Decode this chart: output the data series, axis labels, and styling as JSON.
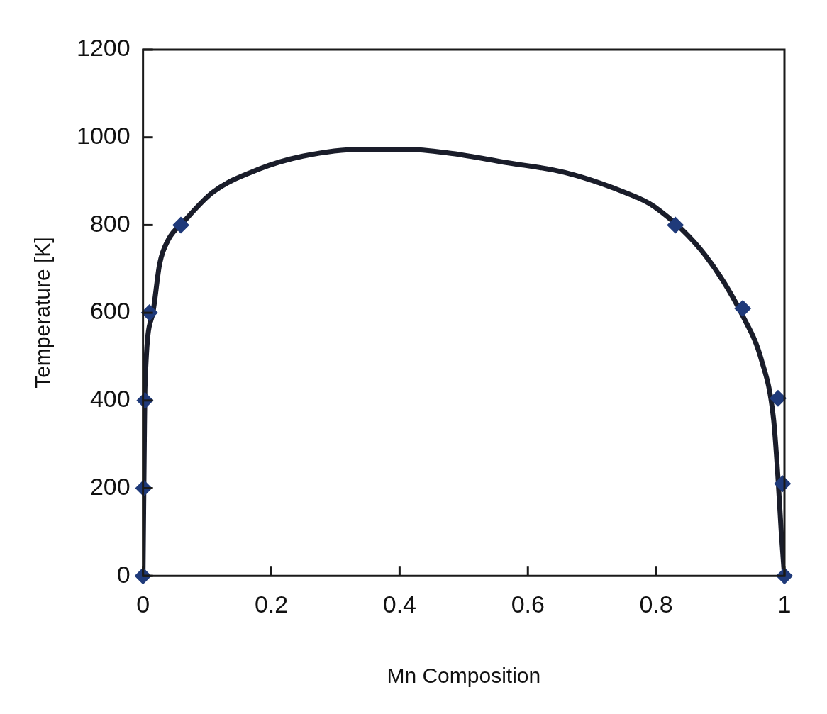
{
  "chart_data": {
    "type": "line",
    "xlabel": "Mn Composition",
    "ylabel": "Temperature [K]",
    "xlim": [
      0,
      1
    ],
    "xticks": [
      0,
      0.2,
      0.4,
      0.6,
      0.8,
      1
    ],
    "ylim": [
      0,
      1200
    ],
    "yticks": [
      0,
      200,
      400,
      600,
      800,
      1000,
      1200
    ],
    "grid": false,
    "legend": false,
    "series": [
      {
        "color": "#1a1d2a",
        "marker": "none",
        "x": [
          0,
          0.002,
          0.003,
          0.015,
          0.026,
          0.04,
          0.063,
          0.109,
          0.18,
          0.249,
          0.342,
          0.412,
          0.482,
          0.564,
          0.657,
          0.75,
          0.797,
          0.876,
          0.936,
          0.964,
          0.983,
          0.99,
          0.995,
          1
        ],
        "values": [
          0,
          300,
          427,
          597,
          712,
          768,
          807,
          875,
          927,
          957,
          973,
          973,
          963,
          943,
          920,
          875,
          842,
          732,
          590,
          493,
          358,
          222,
          100,
          0
        ]
      },
      {
        "type": "scatter",
        "color": "#1f3a7a",
        "marker": "diamond",
        "x": [
          0,
          0.001,
          0.003,
          0.01,
          0.059,
          0.83,
          0.935,
          0.99,
          0.997,
          1
        ],
        "values": [
          0,
          200,
          400,
          600,
          800,
          800,
          610,
          405,
          210,
          0
        ]
      }
    ]
  }
}
